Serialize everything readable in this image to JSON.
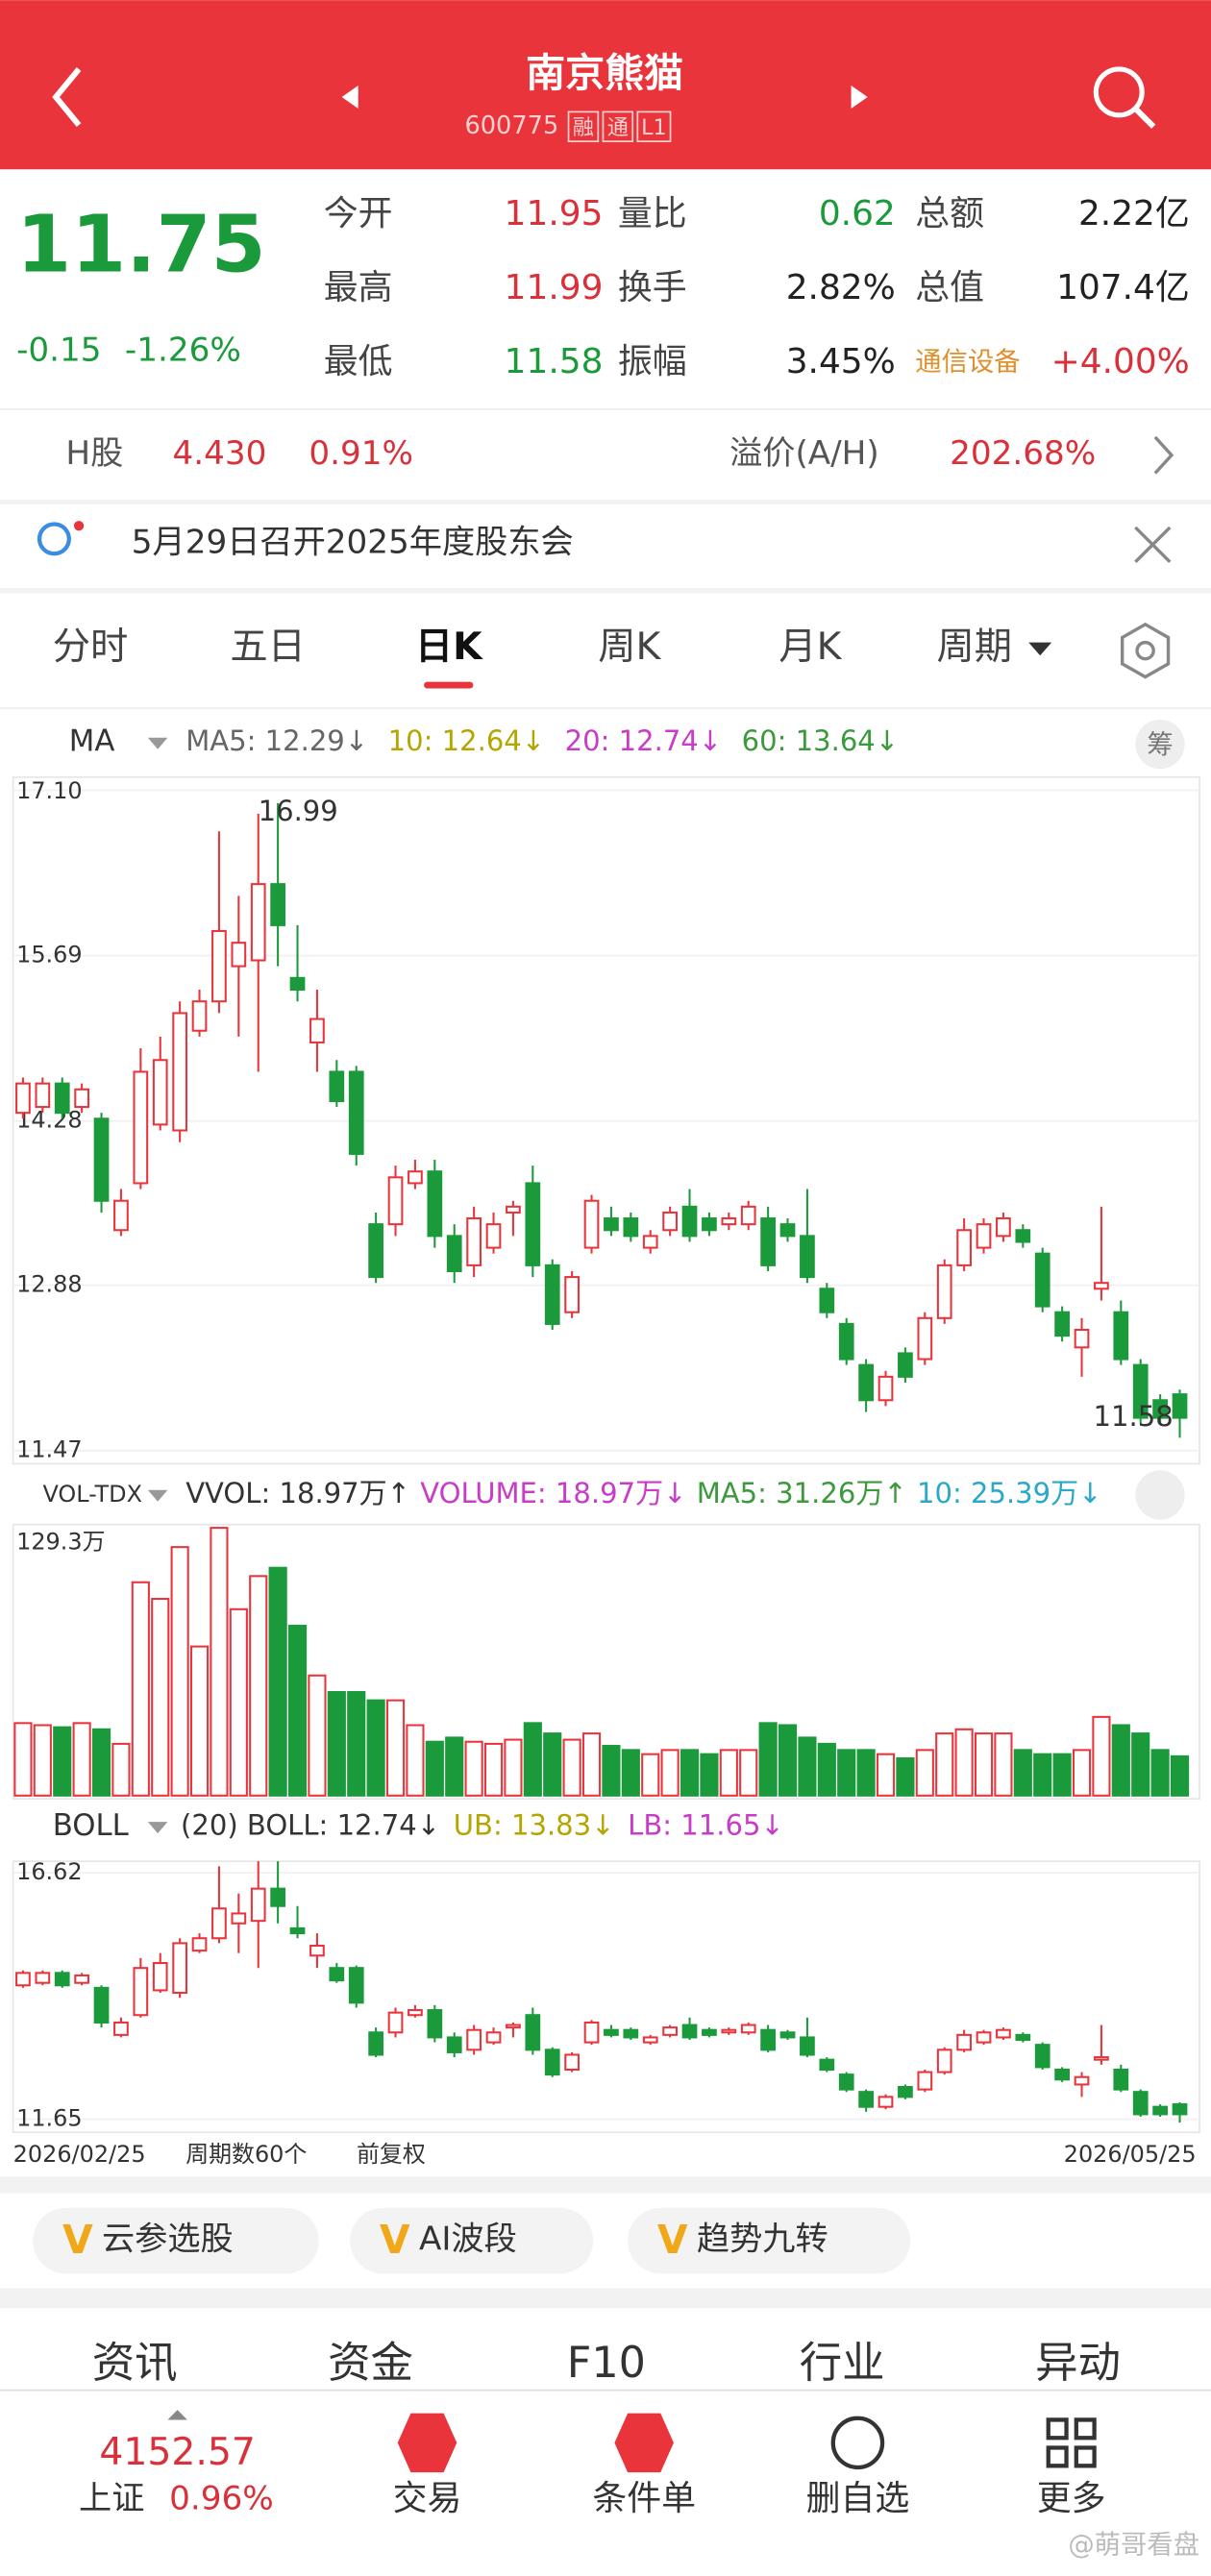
{
  "header": {
    "title": "南京熊猫",
    "code": "600775",
    "tags": [
      "融",
      "通",
      "L1"
    ]
  },
  "quote": {
    "price": "11.75",
    "change": "-0.15",
    "change_pct": "-1.26%",
    "stats": [
      {
        "label": "今开",
        "value": "11.95"
      },
      {
        "label": "最高",
        "value": "11.99"
      },
      {
        "label": "最低",
        "value": "11.58"
      },
      {
        "label": "量比",
        "value": "0.62"
      },
      {
        "label": "换手",
        "value": "2.82%"
      },
      {
        "label": "振幅",
        "value": "3.45%"
      },
      {
        "label": "总额",
        "value": "2.22亿"
      },
      {
        "label": "总值",
        "value": "107.4亿"
      },
      {
        "label": "通信设备",
        "value": "+4.00%"
      }
    ]
  },
  "h_share": {
    "label": "H股",
    "price": "4.430",
    "pct": "0.91%",
    "premium_label": "溢价(A/H)",
    "premium": "202.68%"
  },
  "notice": "5月29日召开2025年度股东会",
  "tabs": [
    "分时",
    "五日",
    "日K",
    "周K",
    "月K",
    "周期"
  ],
  "chart_data": {
    "type": "candlestick",
    "indicator": "MA",
    "legend": [
      "MA5: 12.29↓",
      "10: 12.64↓",
      "20: 12.74↓",
      "60: 13.64↓"
    ],
    "chip_button": "筹",
    "ylim": [
      11.47,
      17.1
    ],
    "yticks": [
      11.47,
      12.88,
      14.28,
      15.69,
      {
        "value": 17.1,
        "label": "17.10"
      }
    ],
    "max_label": "16.99",
    "min_label": "11.58",
    "open": [
      14.35,
      14.4,
      14.6,
      14.4,
      14.3,
      13.35,
      13.75,
      14.25,
      14.2,
      15.05,
      15.3,
      15.6,
      15.65,
      16.3,
      15.5,
      14.95,
      14.7,
      14.7,
      13.4,
      13.4,
      13.75,
      13.85,
      13.3,
      13.05,
      13.2,
      13.5,
      13.75,
      13.05,
      12.65,
      13.2,
      13.45,
      13.45,
      13.2,
      13.35,
      13.55,
      13.45,
      13.4,
      13.4,
      13.45,
      13.4,
      13.3,
      12.85,
      12.55,
      12.2,
      11.9,
      12.3,
      12.25,
      12.6,
      13.05,
      13.2,
      13.3,
      13.35,
      13.15,
      12.65,
      12.35,
      12.85,
      12.65,
      12.2,
      11.9,
      11.95
    ],
    "close": [
      14.6,
      14.6,
      14.35,
      14.55,
      13.6,
      13.6,
      14.7,
      14.8,
      15.2,
      15.3,
      15.9,
      15.8,
      16.3,
      15.95,
      15.4,
      15.15,
      14.45,
      14.0,
      12.95,
      13.8,
      13.85,
      13.3,
      13.0,
      13.45,
      13.4,
      13.55,
      13.05,
      12.55,
      12.95,
      13.6,
      13.35,
      13.3,
      13.3,
      13.5,
      13.3,
      13.35,
      13.45,
      13.55,
      13.05,
      13.3,
      12.95,
      12.65,
      12.25,
      11.9,
      12.1,
      12.1,
      12.6,
      13.05,
      13.35,
      13.4,
      13.45,
      13.25,
      12.7,
      12.45,
      12.5,
      12.9,
      12.25,
      11.75,
      11.75,
      11.75
    ],
    "high": [
      14.65,
      14.65,
      14.65,
      14.6,
      14.35,
      13.7,
      14.9,
      15.0,
      15.3,
      15.4,
      16.75,
      16.2,
      16.9,
      16.99,
      15.95,
      15.4,
      14.8,
      14.75,
      13.5,
      13.9,
      13.95,
      13.95,
      13.4,
      13.55,
      13.5,
      13.6,
      13.9,
      13.1,
      13.0,
      13.65,
      13.55,
      13.5,
      13.35,
      13.55,
      13.7,
      13.5,
      13.5,
      13.6,
      13.55,
      13.45,
      13.7,
      12.9,
      12.6,
      12.25,
      12.15,
      12.35,
      12.65,
      13.1,
      13.45,
      13.45,
      13.5,
      13.4,
      13.2,
      12.7,
      12.6,
      13.55,
      12.75,
      12.25,
      11.95,
      11.99
    ],
    "low": [
      14.3,
      14.35,
      14.3,
      14.35,
      13.5,
      13.3,
      13.7,
      14.2,
      14.1,
      15.0,
      15.2,
      15.0,
      14.7,
      15.6,
      15.3,
      14.7,
      14.4,
      13.9,
      12.9,
      13.3,
      13.7,
      13.2,
      12.9,
      12.95,
      13.15,
      13.3,
      12.95,
      12.5,
      12.6,
      13.15,
      13.3,
      13.25,
      13.15,
      13.3,
      13.25,
      13.3,
      13.35,
      13.35,
      13.0,
      13.25,
      12.9,
      12.6,
      12.2,
      11.8,
      11.85,
      12.05,
      12.2,
      12.55,
      13.0,
      13.15,
      13.25,
      13.2,
      12.65,
      12.4,
      12.1,
      12.75,
      12.2,
      11.7,
      11.7,
      11.58
    ],
    "volume": {
      "indicator": "VOL-TDX",
      "legend": [
        "VVOL: 18.97万↑",
        "VOLUME: 18.97万↓",
        "MA5: 31.26万↑",
        "10: 25.39万↓"
      ],
      "ylim": [
        0,
        129.3
      ],
      "yticks": [
        {
          "value": 129.3,
          "label": "129.3万"
        }
      ],
      "values": [
        35,
        34,
        33,
        35,
        32,
        25,
        103,
        95,
        120,
        72,
        129.3,
        90,
        106,
        110,
        82,
        58,
        50,
        50,
        46,
        46,
        34,
        26,
        28,
        26,
        25,
        27,
        35,
        30,
        27,
        30,
        24,
        22,
        20,
        22,
        22,
        20,
        22,
        22,
        35,
        34,
        28,
        25,
        22,
        22,
        20,
        18,
        22,
        30,
        32,
        30,
        30,
        22,
        20,
        20,
        22,
        38,
        34,
        30,
        22,
        18.97
      ]
    },
    "boll": {
      "indicator": "BOLL",
      "legend": [
        "(20) BOLL: 12.74↓",
        "UB: 13.83↓",
        "LB: 11.65↓"
      ],
      "ylim": [
        11.65,
        16.62
      ],
      "yticks": [
        11.65,
        16.62
      ]
    },
    "x_labels": [
      "2026/02/25",
      "周期数60个",
      "前复权",
      "2026/05/25"
    ]
  },
  "strategies": [
    "云参选股",
    "AI波段",
    "趋势九转"
  ],
  "sub_tabs": [
    "资讯",
    "资金",
    "F10",
    "行业",
    "异动"
  ],
  "index": {
    "value": "4152.57",
    "name": "上证",
    "pct": "0.96%"
  },
  "actions": [
    "交易",
    "条件单",
    "删自选",
    "更多"
  ],
  "watermark": "@萌哥看盘"
}
